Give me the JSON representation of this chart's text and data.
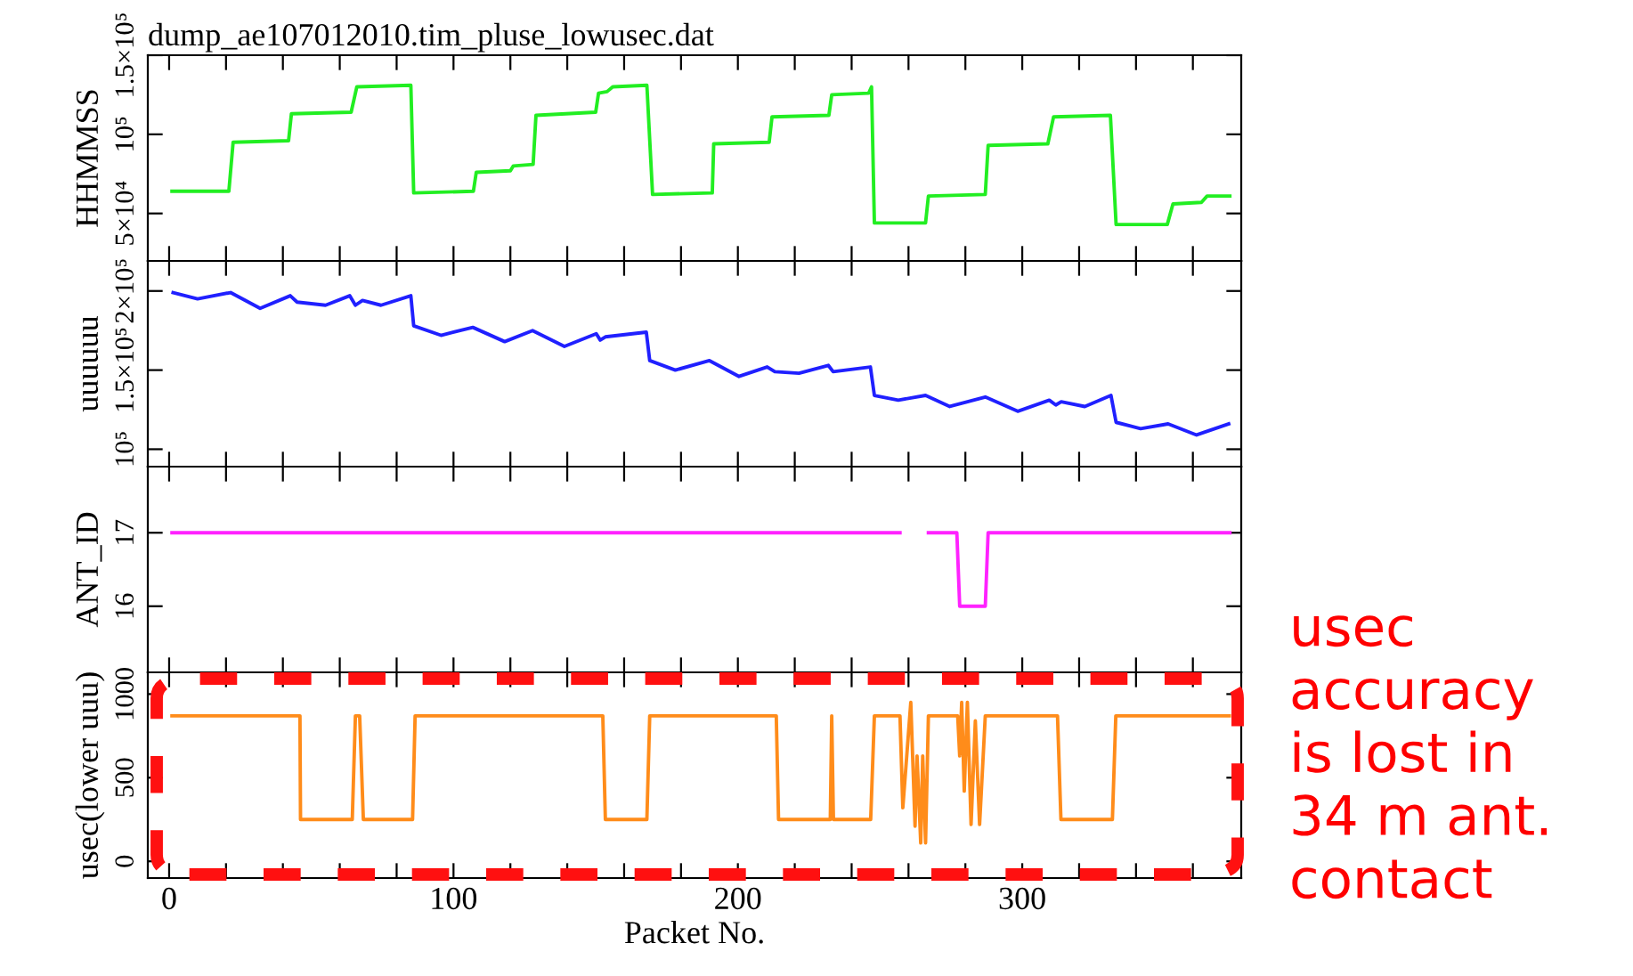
{
  "chart_data": [
    {
      "type": "line",
      "title": "dump_ae107012010.tim_pluse_lowusec.dat",
      "ylabel": "HHMMSS",
      "tick_labels": "y",
      "xlim": [
        -7.5,
        377
      ],
      "ylim": [
        20000,
        150000
      ],
      "xticks": [
        {
          "value": 0,
          "label": null
        },
        {
          "value": 20,
          "label": null
        },
        {
          "value": 40,
          "label": null
        },
        {
          "value": 60,
          "label": null
        },
        {
          "value": 80,
          "label": null
        },
        {
          "value": 100,
          "label": null
        },
        {
          "value": 120,
          "label": null
        },
        {
          "value": 140,
          "label": null
        },
        {
          "value": 160,
          "label": null
        },
        {
          "value": 180,
          "label": null
        },
        {
          "value": 200,
          "label": null
        },
        {
          "value": 220,
          "label": null
        },
        {
          "value": 240,
          "label": null
        },
        {
          "value": 260,
          "label": null
        },
        {
          "value": 280,
          "label": null
        },
        {
          "value": 300,
          "label": null
        },
        {
          "value": 320,
          "label": null
        },
        {
          "value": 340,
          "label": null
        },
        {
          "value": 360,
          "label": null
        }
      ],
      "yticks": [
        {
          "value": 50000,
          "label": "5×10⁴"
        },
        {
          "value": 100000,
          "label": "10⁵"
        },
        {
          "value": 150000,
          "label": "1.5×10⁵"
        }
      ],
      "x": [
        1,
        21,
        22.5,
        42,
        43,
        64,
        66,
        85,
        86,
        107,
        108,
        120,
        121,
        128,
        129,
        150,
        151,
        154,
        156,
        168,
        170,
        191,
        191.5,
        211,
        212,
        232,
        233,
        246,
        247,
        248,
        266,
        267,
        287,
        288,
        309,
        311,
        331,
        333,
        351,
        353,
        363,
        365,
        373
      ],
      "series": [
        {
          "color": "#22ee22",
          "values": [
            64000,
            64000,
            95000,
            96000,
            113000,
            114000,
            130000,
            131000,
            63000,
            64000,
            76000,
            77000,
            80000,
            81000,
            112000,
            114000,
            126000,
            127000,
            130000,
            131000,
            62000,
            63000,
            94000,
            95000,
            111000,
            112000,
            125000,
            126000,
            130000,
            44000,
            44000,
            61000,
            62000,
            93000,
            94000,
            111000,
            112000,
            43000,
            43000,
            56000,
            57000,
            61000,
            61000
          ]
        }
      ]
    },
    {
      "type": "line",
      "ylabel": "uuuuuu",
      "tick_labels": "y",
      "xlim": [
        -7.5,
        377
      ],
      "ylim": [
        89000,
        219000
      ],
      "xticks": [
        {
          "value": 0,
          "label": null
        },
        {
          "value": 20,
          "label": null
        },
        {
          "value": 40,
          "label": null
        },
        {
          "value": 60,
          "label": null
        },
        {
          "value": 80,
          "label": null
        },
        {
          "value": 100,
          "label": null
        },
        {
          "value": 120,
          "label": null
        },
        {
          "value": 140,
          "label": null
        },
        {
          "value": 160,
          "label": null
        },
        {
          "value": 180,
          "label": null
        },
        {
          "value": 200,
          "label": null
        },
        {
          "value": 220,
          "label": null
        },
        {
          "value": 240,
          "label": null
        },
        {
          "value": 260,
          "label": null
        },
        {
          "value": 280,
          "label": null
        },
        {
          "value": 300,
          "label": null
        },
        {
          "value": 320,
          "label": null
        },
        {
          "value": 340,
          "label": null
        },
        {
          "value": 360,
          "label": null
        }
      ],
      "yticks": [
        {
          "value": 100000,
          "label": "10⁵"
        },
        {
          "value": 150000,
          "label": "1.5×10⁵"
        },
        {
          "value": 200000,
          "label": "2×10⁵"
        }
      ],
      "x": [
        1.4,
        10,
        21.6,
        32,
        42.6,
        45,
        55,
        63.5,
        65.5,
        68,
        74.5,
        85,
        86,
        95.6,
        106.8,
        118,
        127.8,
        139,
        150.2,
        151.6,
        153.4,
        167.8,
        169,
        178,
        190,
        200.4,
        210.3,
        213,
        221.5,
        231.8,
        233.5,
        246.6,
        248,
        256.4,
        266,
        274.5,
        287,
        298.4,
        309.5,
        311.8,
        313.7,
        322,
        331.2,
        333,
        341.6,
        351.3,
        361.3,
        372.6
      ],
      "series": [
        {
          "color": "#2020ff",
          "values": [
            199000,
            195000,
            199000,
            189000,
            197000,
            193000,
            191000,
            197000,
            191000,
            194000,
            191000,
            197000,
            178000,
            172000,
            177000,
            168000,
            175000,
            165000,
            173000,
            169000,
            171000,
            174000,
            156000,
            150000,
            156000,
            146000,
            152000,
            149000,
            148000,
            153000,
            149000,
            152000,
            134000,
            131000,
            134000,
            127000,
            133000,
            124000,
            131000,
            128000,
            130000,
            127000,
            134000,
            117000,
            113000,
            116000,
            109000,
            116000
          ]
        }
      ]
    },
    {
      "type": "line",
      "ylabel": "ANT_ID",
      "tick_labels": "y",
      "xlim": [
        -7.5,
        377
      ],
      "ylim": [
        15.1,
        17.9
      ],
      "xticks": [
        {
          "value": 0,
          "label": null
        },
        {
          "value": 20,
          "label": null
        },
        {
          "value": 40,
          "label": null
        },
        {
          "value": 60,
          "label": null
        },
        {
          "value": 80,
          "label": null
        },
        {
          "value": 100,
          "label": null
        },
        {
          "value": 120,
          "label": null
        },
        {
          "value": 140,
          "label": null
        },
        {
          "value": 160,
          "label": null
        },
        {
          "value": 180,
          "label": null
        },
        {
          "value": 200,
          "label": null
        },
        {
          "value": 220,
          "label": null
        },
        {
          "value": 240,
          "label": null
        },
        {
          "value": 260,
          "label": null
        },
        {
          "value": 280,
          "label": null
        },
        {
          "value": 300,
          "label": null
        },
        {
          "value": 320,
          "label": null
        },
        {
          "value": 340,
          "label": null
        },
        {
          "value": 360,
          "label": null
        }
      ],
      "yticks": [
        16,
        17
      ],
      "x": [
        1,
        257,
        258,
        266,
        267,
        277,
        278,
        287,
        288,
        373
      ],
      "series": [
        {
          "color": "#ff22ff",
          "values": [
            17,
            17,
            null,
            null,
            17,
            17,
            16,
            16,
            17,
            17
          ]
        }
      ]
    },
    {
      "type": "line",
      "ylabel": "usec(lower uuu)",
      "xlabel": "Packet No.",
      "xlim": [
        -7.5,
        377
      ],
      "ylim": [
        -100,
        1130
      ],
      "xticks": [
        0,
        {
          "value": 20,
          "label": null
        },
        {
          "value": 40,
          "label": null
        },
        {
          "value": 60,
          "label": null
        },
        {
          "value": 80,
          "label": null
        },
        100,
        {
          "value": 120,
          "label": null
        },
        {
          "value": 140,
          "label": null
        },
        {
          "value": 160,
          "label": null
        },
        {
          "value": 180,
          "label": null
        },
        200,
        {
          "value": 220,
          "label": null
        },
        {
          "value": 240,
          "label": null
        },
        {
          "value": 260,
          "label": null
        },
        {
          "value": 280,
          "label": null
        },
        300,
        {
          "value": 320,
          "label": null
        },
        {
          "value": 340,
          "label": null
        },
        {
          "value": 360,
          "label": null
        }
      ],
      "yticks": [
        0,
        500,
        1000
      ],
      "x": [
        1,
        46,
        46.2,
        64.4,
        65.5,
        67,
        68.3,
        85.6,
        86.5,
        152.5,
        153.4,
        168,
        169,
        213.5,
        214.3,
        232.5,
        233,
        233.6,
        246.7,
        248,
        257,
        258,
        260.8,
        262.3,
        263,
        264.3,
        265,
        266,
        267,
        277.3,
        278,
        278.7,
        279.6,
        280.7,
        282,
        283.5,
        285,
        287,
        312.4,
        313.6,
        331.7,
        332.9,
        372.8
      ],
      "series": [
        {
          "color": "#ff8c1a",
          "values": [
            870,
            870,
            250,
            250,
            870,
            870,
            250,
            250,
            870,
            870,
            250,
            250,
            870,
            870,
            250,
            250,
            870,
            250,
            250,
            870,
            870,
            320,
            950,
            210,
            630,
            110,
            630,
            110,
            870,
            870,
            630,
            950,
            420,
            950,
            220,
            840,
            220,
            870,
            870,
            250,
            250,
            870,
            870
          ]
        }
      ],
      "annotations": [
        "usec\naccuracy\nis lost in\n34 m ant.\ncontact"
      ]
    }
  ]
}
